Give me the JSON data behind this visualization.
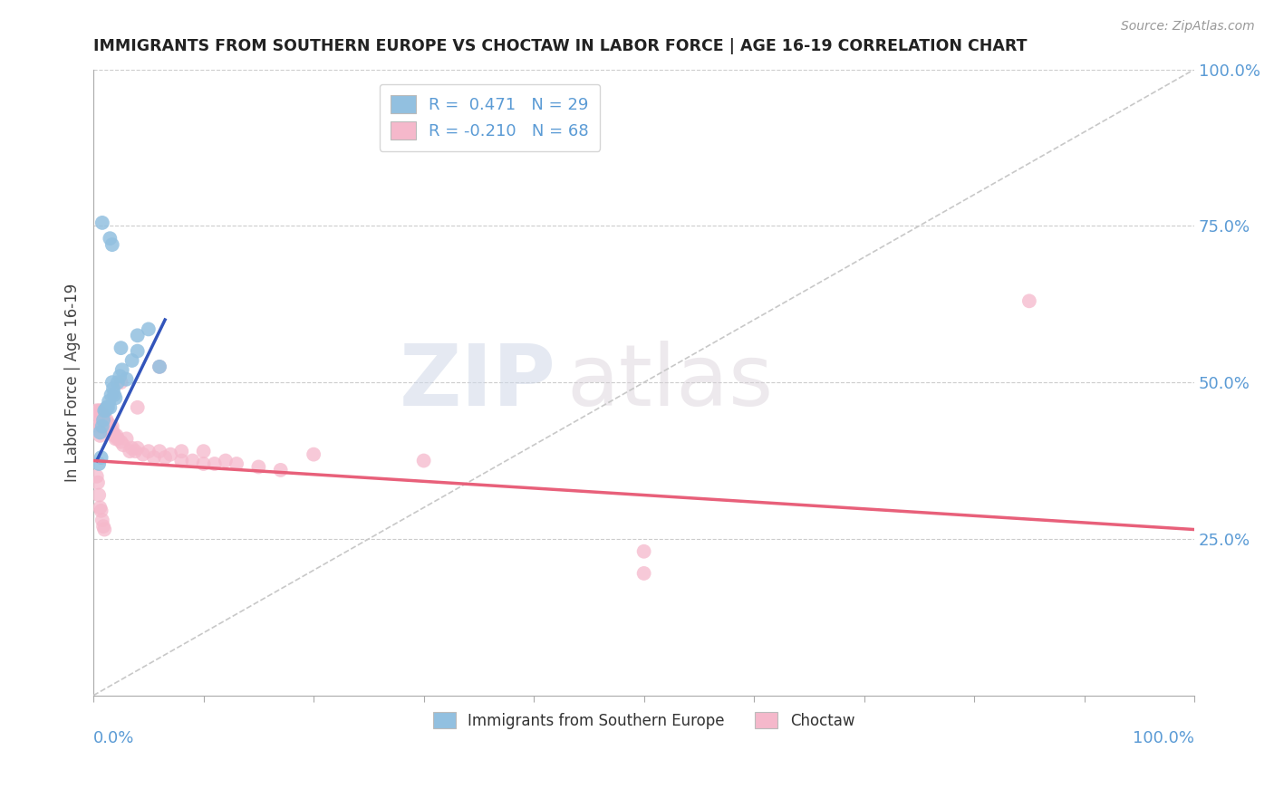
{
  "title": "IMMIGRANTS FROM SOUTHERN EUROPE VS CHOCTAW IN LABOR FORCE | AGE 16-19 CORRELATION CHART",
  "source_text": "Source: ZipAtlas.com",
  "ylabel": "In Labor Force | Age 16-19",
  "xmin": 0.0,
  "xmax": 1.0,
  "ymin": 0.0,
  "ymax": 1.0,
  "y_tick_positions": [
    1.0,
    0.75,
    0.5,
    0.25
  ],
  "legend_label1": "R =  0.471   N = 29",
  "legend_label2": "R = -0.210   N = 68",
  "color_blue": "#92C0E0",
  "color_pink": "#F5B8CB",
  "line_blue": "#3355BB",
  "line_pink": "#E8607A",
  "trendline_dashed_color": "#C8C8C8",
  "watermark_zip": "ZIP",
  "watermark_atlas": "atlas",
  "blue_dots": [
    [
      0.005,
      0.37
    ],
    [
      0.006,
      0.42
    ],
    [
      0.007,
      0.38
    ],
    [
      0.008,
      0.43
    ],
    [
      0.009,
      0.44
    ],
    [
      0.01,
      0.455
    ],
    [
      0.011,
      0.455
    ],
    [
      0.012,
      0.46
    ],
    [
      0.013,
      0.46
    ],
    [
      0.014,
      0.47
    ],
    [
      0.015,
      0.46
    ],
    [
      0.016,
      0.48
    ],
    [
      0.017,
      0.5
    ],
    [
      0.018,
      0.49
    ],
    [
      0.019,
      0.48
    ],
    [
      0.02,
      0.475
    ],
    [
      0.022,
      0.5
    ],
    [
      0.024,
      0.51
    ],
    [
      0.026,
      0.52
    ],
    [
      0.03,
      0.505
    ],
    [
      0.035,
      0.535
    ],
    [
      0.04,
      0.55
    ],
    [
      0.05,
      0.585
    ],
    [
      0.06,
      0.525
    ],
    [
      0.015,
      0.73
    ],
    [
      0.017,
      0.72
    ],
    [
      0.008,
      0.755
    ],
    [
      0.04,
      0.575
    ],
    [
      0.025,
      0.555
    ]
  ],
  "pink_dots": [
    [
      0.003,
      0.455
    ],
    [
      0.004,
      0.445
    ],
    [
      0.005,
      0.455
    ],
    [
      0.005,
      0.43
    ],
    [
      0.006,
      0.445
    ],
    [
      0.006,
      0.415
    ],
    [
      0.007,
      0.455
    ],
    [
      0.007,
      0.43
    ],
    [
      0.008,
      0.45
    ],
    [
      0.009,
      0.445
    ],
    [
      0.009,
      0.44
    ],
    [
      0.01,
      0.44
    ],
    [
      0.01,
      0.435
    ],
    [
      0.011,
      0.435
    ],
    [
      0.011,
      0.43
    ],
    [
      0.012,
      0.44
    ],
    [
      0.012,
      0.43
    ],
    [
      0.013,
      0.435
    ],
    [
      0.013,
      0.43
    ],
    [
      0.014,
      0.425
    ],
    [
      0.015,
      0.43
    ],
    [
      0.015,
      0.42
    ],
    [
      0.016,
      0.425
    ],
    [
      0.017,
      0.43
    ],
    [
      0.018,
      0.42
    ],
    [
      0.019,
      0.415
    ],
    [
      0.02,
      0.41
    ],
    [
      0.021,
      0.415
    ],
    [
      0.022,
      0.41
    ],
    [
      0.025,
      0.405
    ],
    [
      0.027,
      0.4
    ],
    [
      0.03,
      0.41
    ],
    [
      0.033,
      0.39
    ],
    [
      0.035,
      0.395
    ],
    [
      0.038,
      0.39
    ],
    [
      0.04,
      0.395
    ],
    [
      0.045,
      0.385
    ],
    [
      0.05,
      0.39
    ],
    [
      0.055,
      0.38
    ],
    [
      0.06,
      0.39
    ],
    [
      0.065,
      0.38
    ],
    [
      0.07,
      0.385
    ],
    [
      0.08,
      0.375
    ],
    [
      0.09,
      0.375
    ],
    [
      0.1,
      0.37
    ],
    [
      0.11,
      0.37
    ],
    [
      0.12,
      0.375
    ],
    [
      0.13,
      0.37
    ],
    [
      0.15,
      0.365
    ],
    [
      0.17,
      0.36
    ],
    [
      0.003,
      0.35
    ],
    [
      0.004,
      0.34
    ],
    [
      0.005,
      0.32
    ],
    [
      0.006,
      0.3
    ],
    [
      0.007,
      0.295
    ],
    [
      0.008,
      0.28
    ],
    [
      0.009,
      0.27
    ],
    [
      0.01,
      0.265
    ],
    [
      0.025,
      0.5
    ],
    [
      0.04,
      0.46
    ],
    [
      0.06,
      0.525
    ],
    [
      0.08,
      0.39
    ],
    [
      0.1,
      0.39
    ],
    [
      0.2,
      0.385
    ],
    [
      0.3,
      0.375
    ],
    [
      0.5,
      0.23
    ],
    [
      0.5,
      0.195
    ],
    [
      0.85,
      0.63
    ]
  ],
  "blue_trendline": [
    [
      0.003,
      0.375
    ],
    [
      0.065,
      0.6
    ]
  ],
  "pink_trendline": [
    [
      0.0,
      0.375
    ],
    [
      1.0,
      0.265
    ]
  ]
}
